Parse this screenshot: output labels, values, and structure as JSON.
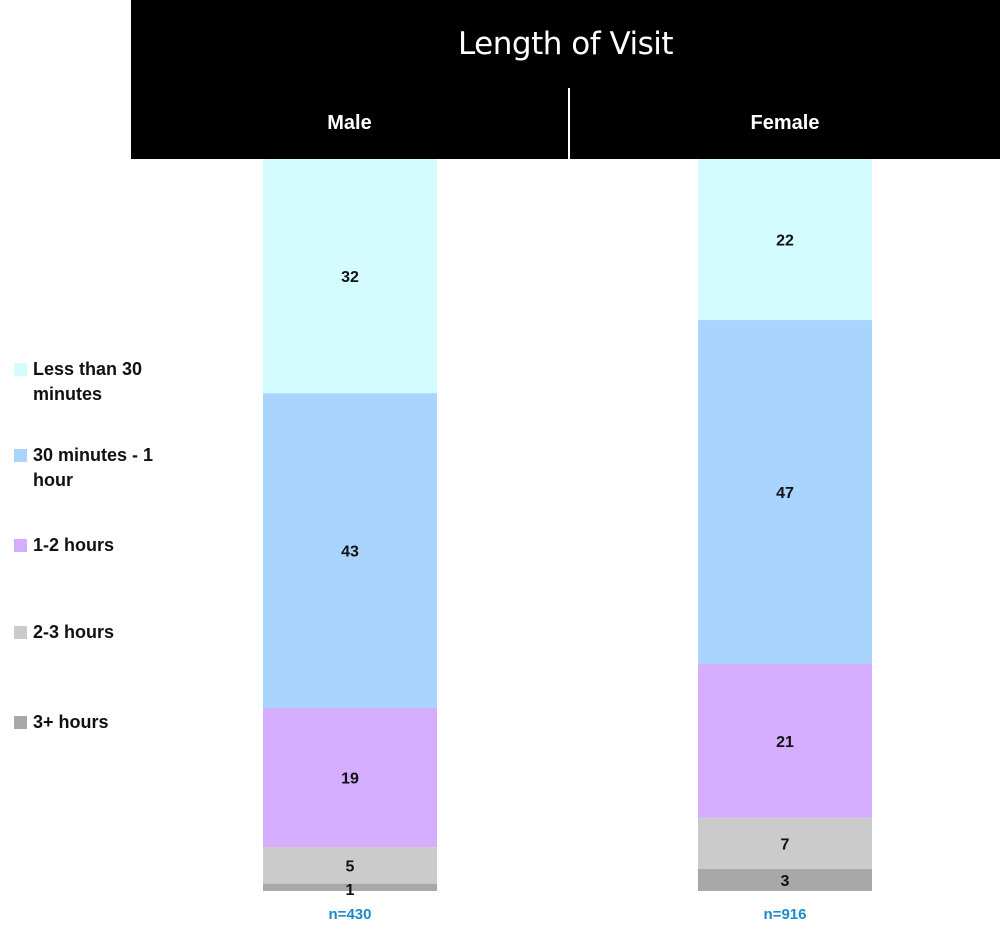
{
  "title": "Length of Visit",
  "chart_data": {
    "type": "bar",
    "stacked": true,
    "orientation": "vertical",
    "categories": [
      "Male",
      "Female"
    ],
    "sample_sizes": [
      "n=430",
      "n=916"
    ],
    "series": [
      {
        "name": "Less than 30 minutes",
        "values": [
          32,
          22
        ],
        "color": "#d4fcfe"
      },
      {
        "name": "30 minutes - 1 hour",
        "values": [
          43,
          47
        ],
        "color": "#a9d4fe"
      },
      {
        "name": "1-2 hours",
        "values": [
          19,
          21
        ],
        "color": "#d6acfe"
      },
      {
        "name": "2-3 hours",
        "values": [
          5,
          7
        ],
        "color": "#cbcbcb"
      },
      {
        "name": "3+ hours",
        "values": [
          1,
          3
        ],
        "color": "#a8a8a8"
      }
    ],
    "legend_position": "left",
    "label_color": "#111111",
    "n_color": "#1a8bc8"
  }
}
